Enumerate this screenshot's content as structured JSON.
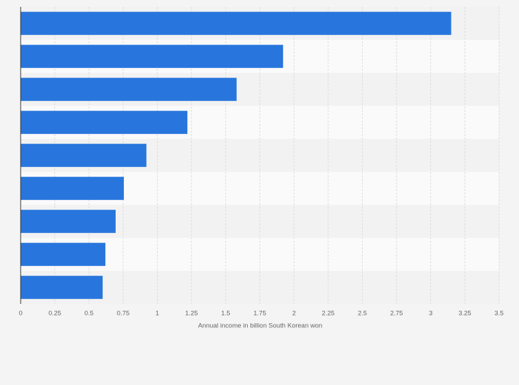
{
  "chart_data": {
    "type": "hbar",
    "categories": [
      null,
      null,
      null,
      null,
      null,
      null,
      null,
      null,
      null
    ],
    "values": [
      3.15,
      1.92,
      1.58,
      1.22,
      0.92,
      0.755,
      0.695,
      0.62,
      0.6
    ],
    "color": "#2876dd",
    "x_label": "Annual income in billion South Korean won",
    "xlim": [
      0,
      3.5
    ],
    "xticks": [
      0,
      0.25,
      0.5,
      0.75,
      1,
      1.25,
      1.5,
      1.75,
      2,
      2.25,
      2.5,
      2.75,
      3,
      3.25,
      3.5
    ],
    "grid": true
  }
}
